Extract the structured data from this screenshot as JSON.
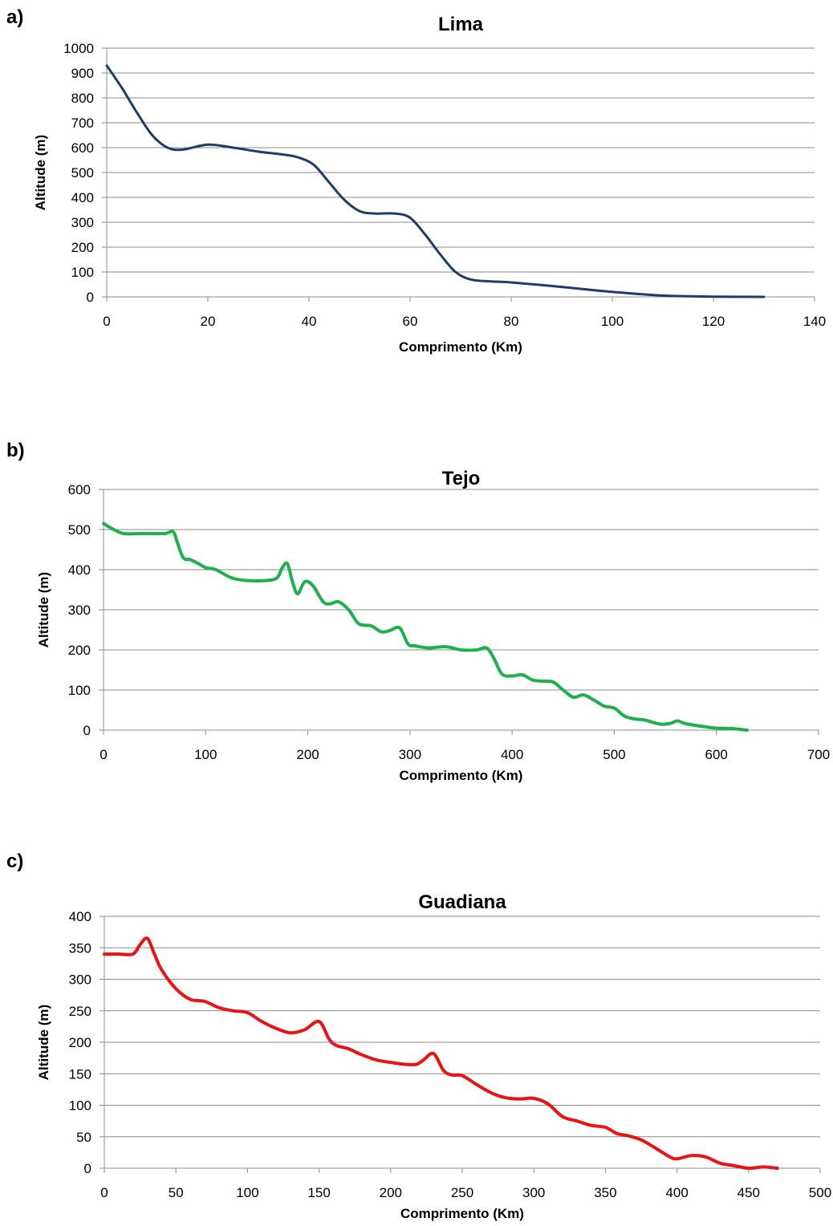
{
  "chart_data": [
    {
      "type": "line",
      "panel_label": "a)",
      "title": "Lima",
      "xlabel": "Comprimento (Km)",
      "ylabel": "Altitude (m)",
      "xlim": [
        0,
        140
      ],
      "ylim": [
        0,
        1000
      ],
      "xticks": [
        0,
        20,
        40,
        60,
        80,
        100,
        120,
        140
      ],
      "yticks": [
        0,
        100,
        200,
        300,
        400,
        500,
        600,
        700,
        800,
        900,
        1000
      ],
      "grid": true,
      "color": "#1f3b6b",
      "series": [
        {
          "x": [
            0,
            3,
            6,
            9,
            12,
            15,
            20,
            25,
            30,
            35,
            38,
            41,
            44,
            47,
            50,
            53,
            57,
            60,
            63,
            66,
            69,
            72,
            76,
            80,
            90,
            100,
            110,
            120,
            130
          ],
          "y": [
            930,
            840,
            740,
            650,
            600,
            592,
            612,
            600,
            584,
            572,
            560,
            530,
            460,
            390,
            345,
            335,
            335,
            318,
            250,
            170,
            100,
            70,
            62,
            58,
            40,
            20,
            5,
            1,
            0
          ]
        }
      ]
    },
    {
      "type": "line",
      "panel_label": "b)",
      "title": "Tejo",
      "xlabel": "Comprimento (Km)",
      "ylabel": "Altitude (m)",
      "xlim": [
        0,
        700
      ],
      "ylim": [
        0,
        600
      ],
      "xticks": [
        0,
        100,
        200,
        300,
        400,
        500,
        600,
        700
      ],
      "yticks": [
        0,
        100,
        200,
        300,
        400,
        500,
        600
      ],
      "grid": true,
      "color": "#1db14b",
      "series": [
        {
          "x": [
            0,
            10,
            20,
            40,
            60,
            68,
            72,
            78,
            85,
            93,
            100,
            110,
            125,
            140,
            160,
            170,
            175,
            180,
            185,
            190,
            197,
            205,
            215,
            222,
            230,
            240,
            250,
            262,
            272,
            280,
            290,
            298,
            305,
            318,
            335,
            350,
            365,
            375,
            382,
            390,
            400,
            410,
            420,
            430,
            440,
            450,
            460,
            470,
            480,
            490,
            500,
            510,
            520,
            530,
            545,
            555,
            562,
            570,
            590,
            600,
            615,
            630
          ],
          "y": [
            515,
            500,
            490,
            490,
            490,
            495,
            470,
            430,
            425,
            415,
            405,
            400,
            380,
            373,
            373,
            380,
            405,
            415,
            370,
            340,
            370,
            360,
            320,
            315,
            320,
            300,
            265,
            260,
            245,
            248,
            255,
            215,
            210,
            205,
            208,
            200,
            200,
            205,
            180,
            140,
            135,
            138,
            125,
            122,
            120,
            100,
            82,
            88,
            75,
            60,
            55,
            35,
            28,
            25,
            15,
            17,
            23,
            16,
            8,
            5,
            4,
            0
          ]
        }
      ]
    },
    {
      "type": "line",
      "panel_label": "c)",
      "title": "Guadiana",
      "xlabel": "Comprimento (Km)",
      "ylabel": "Altitude (m)",
      "xlim": [
        0,
        500
      ],
      "ylim": [
        0,
        400
      ],
      "xticks": [
        0,
        50,
        100,
        150,
        200,
        250,
        300,
        350,
        400,
        450,
        500
      ],
      "yticks": [
        0,
        50,
        100,
        150,
        200,
        250,
        300,
        350,
        400
      ],
      "grid": true,
      "color": "#ee1111",
      "series": [
        {
          "x": [
            0,
            10,
            20,
            25,
            30,
            35,
            40,
            50,
            60,
            70,
            80,
            90,
            100,
            110,
            120,
            130,
            140,
            150,
            157,
            162,
            170,
            180,
            190,
            200,
            210,
            218,
            223,
            230,
            237,
            243,
            250,
            260,
            270,
            280,
            290,
            300,
            310,
            320,
            330,
            340,
            350,
            358,
            365,
            375,
            385,
            395,
            400,
            410,
            420,
            430,
            440,
            450,
            460,
            470
          ],
          "y": [
            340,
            340,
            340,
            355,
            365,
            340,
            315,
            285,
            268,
            265,
            255,
            250,
            247,
            233,
            222,
            215,
            220,
            233,
            205,
            195,
            190,
            180,
            172,
            168,
            165,
            165,
            172,
            182,
            155,
            148,
            147,
            133,
            120,
            112,
            110,
            111,
            102,
            82,
            75,
            68,
            65,
            55,
            52,
            45,
            32,
            18,
            15,
            20,
            18,
            8,
            4,
            0,
            2,
            0
          ]
        }
      ]
    }
  ]
}
